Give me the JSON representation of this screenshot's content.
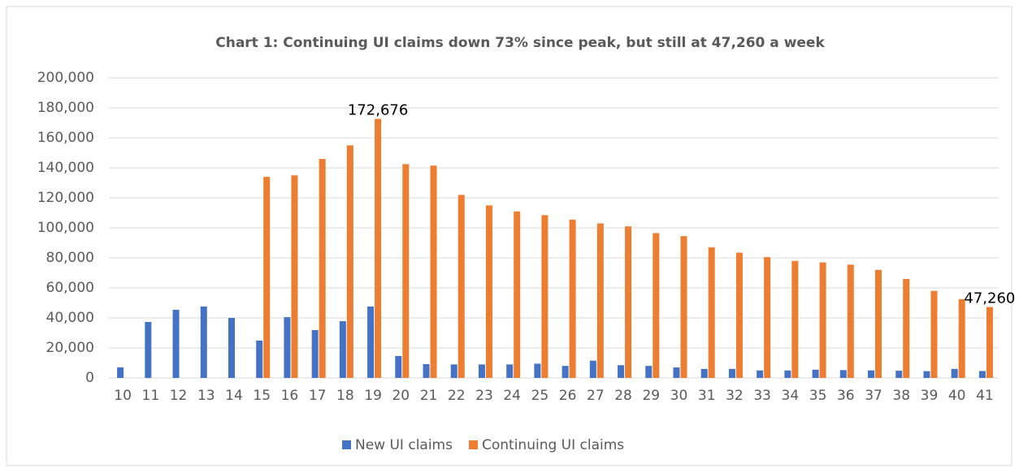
{
  "chart_data": {
    "type": "bar",
    "title": "Chart 1: Continuing UI claims down 73% since peak, but still at 47,260 a week",
    "categories": [
      "10",
      "11",
      "12",
      "13",
      "14",
      "15",
      "16",
      "17",
      "18",
      "19",
      "20",
      "21",
      "22",
      "23",
      "24",
      "25",
      "26",
      "27",
      "28",
      "29",
      "30",
      "31",
      "32",
      "33",
      "34",
      "35",
      "36",
      "37",
      "38",
      "39",
      "40",
      "41"
    ],
    "series": [
      {
        "name": "New UI claims",
        "color": "#4472c4",
        "values": [
          7000,
          37300,
          45400,
          47600,
          40000,
          24900,
          40500,
          31900,
          37800,
          47600,
          14600,
          9200,
          9000,
          9000,
          9000,
          9500,
          8000,
          11500,
          8500,
          8000,
          7000,
          6000,
          6000,
          5000,
          5000,
          5500,
          5200,
          5000,
          4800,
          4500,
          6000,
          4600
        ]
      },
      {
        "name": "Continuing UI claims",
        "color": "#ed7d31",
        "values": [
          null,
          null,
          null,
          null,
          null,
          134000,
          135000,
          146000,
          155000,
          172676,
          142500,
          141500,
          122000,
          115000,
          111000,
          108500,
          105500,
          103000,
          101000,
          96500,
          94500,
          87000,
          83500,
          80500,
          78000,
          77000,
          75500,
          72000,
          66000,
          58000,
          52500,
          47260
        ],
        "value_labels": [
          null,
          null,
          null,
          null,
          null,
          null,
          null,
          null,
          null,
          "172,676",
          null,
          null,
          null,
          null,
          null,
          null,
          null,
          null,
          null,
          null,
          null,
          null,
          null,
          null,
          null,
          null,
          null,
          null,
          null,
          null,
          null,
          "47,260"
        ]
      }
    ],
    "ylim": [
      0,
      200000
    ],
    "yticks": [
      0,
      {
        "value": 20000,
        "label": "20,000"
      },
      {
        "value": 40000,
        "label": "40,000"
      },
      {
        "value": 60000,
        "label": "60,000"
      },
      {
        "value": 80000,
        "label": "80,000"
      },
      {
        "value": 100000,
        "label": "100,000"
      },
      {
        "value": 120000,
        "label": "120,000"
      },
      {
        "value": 140000,
        "label": "140,000"
      },
      {
        "value": 160000,
        "label": "160,000"
      },
      {
        "value": 180000,
        "label": "180,000"
      },
      {
        "value": 200000,
        "label": "200,000"
      }
    ],
    "grid": true,
    "legend": "bottom"
  }
}
